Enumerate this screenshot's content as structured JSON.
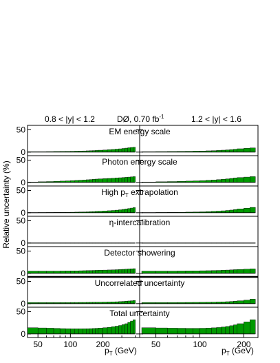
{
  "chart_data": {
    "type": "area",
    "header": {
      "left_range": "0.8 < |y| < 1.2",
      "center": "DØ, 0.70 fb",
      "center_sup": "-1",
      "right_range": "1.2 < |y| < 1.6"
    },
    "ylabel": "Relative uncertainty (%)",
    "xlabel_main": "p",
    "xlabel_sub": "T",
    "xlabel_unit": " (GeV)",
    "xscale": "log",
    "y_ticks": [
      "0",
      "50"
    ],
    "ylim": [
      -8,
      60
    ],
    "fill_color": "#009900",
    "left_panel": {
      "xlim": [
        40,
        420
      ],
      "x_ticks": [
        50,
        100,
        200
      ],
      "x_tick_labels": [
        "50",
        "100",
        "200"
      ],
      "bin_edges": [
        40,
        50,
        60,
        70,
        80,
        90,
        100,
        110,
        120,
        130,
        140,
        150,
        160,
        170,
        180,
        200,
        220,
        240,
        260,
        280,
        300,
        320,
        340,
        360,
        380,
        400
      ]
    },
    "right_panel": {
      "xlim": [
        40,
        250
      ],
      "x_ticks": [
        50,
        100,
        200
      ],
      "x_tick_labels": [
        "50",
        "100",
        "200"
      ],
      "bin_edges": [
        40,
        50,
        60,
        70,
        80,
        90,
        100,
        110,
        120,
        130,
        140,
        150,
        160,
        170,
        180,
        200,
        220,
        240
      ]
    },
    "panels": [
      {
        "label": "EM energy scale",
        "left": [
          1,
          1,
          1.2,
          1.4,
          1.5,
          1.7,
          1.9,
          2.1,
          2.3,
          2.6,
          2.9,
          3.2,
          3.5,
          3.8,
          4.3,
          4.8,
          5.4,
          6.0,
          6.7,
          7.4,
          8.2,
          9.0,
          9.8,
          10.5,
          11
        ],
        "right": [
          1,
          1.2,
          1.4,
          1.6,
          1.9,
          2.2,
          2.5,
          2.9,
          3.3,
          3.8,
          4.4,
          5.0,
          5.7,
          6.5,
          7.5,
          8.5,
          9.5
        ]
      },
      {
        "label": "Photon energy scale",
        "left": [
          1,
          1.5,
          2,
          2.5,
          3,
          3.5,
          4,
          4.5,
          5,
          5.5,
          6,
          6.5,
          7,
          7.5,
          8,
          8.5,
          9,
          9.5,
          10,
          10.5,
          11,
          11.5,
          12,
          12.5,
          13
        ],
        "right": [
          1,
          1.5,
          2,
          2.5,
          3,
          3.5,
          4,
          4.8,
          5.5,
          6.3,
          7.2,
          8.0,
          9.0,
          10.0,
          11.0,
          12.0,
          13.0
        ]
      },
      {
        "label_pre": "High p",
        "label_sub": "T",
        "label_post": " extrapolation",
        "left": [
          0.5,
          0.6,
          0.7,
          0.8,
          0.9,
          1.0,
          1.2,
          1.4,
          1.6,
          1.8,
          2.0,
          2.3,
          2.6,
          3.0,
          3.4,
          3.9,
          4.5,
          5.1,
          5.8,
          6.6,
          7.5,
          8.5,
          9.5,
          10.5,
          11.5
        ],
        "right": [
          0.5,
          0.7,
          0.9,
          1.1,
          1.4,
          1.7,
          2.0,
          2.5,
          3.0,
          3.6,
          4.3,
          5.1,
          6.0,
          7.2,
          8.6,
          10.2,
          12.0
        ]
      },
      {
        "label": "η-intercalibration",
        "left": [
          0.3,
          0.3,
          0.3,
          0.3,
          0.3,
          0.3,
          0.3,
          0.3,
          0.3,
          0.3,
          0.3,
          0.3,
          0.3,
          0.3,
          0.3,
          0.3,
          0.3,
          0.3,
          0.3,
          0.3,
          0.3,
          0.3,
          0.3,
          0.3,
          0.3
        ],
        "right": [
          0.3,
          0.3,
          0.3,
          0.3,
          0.3,
          0.3,
          0.3,
          0.3,
          0.3,
          0.3,
          0.3,
          0.3,
          0.3,
          0.3,
          0.3,
          0.3,
          0.3
        ]
      },
      {
        "label": "Detector showering",
        "left": [
          5,
          5,
          5,
          5,
          5.2,
          5.3,
          5.5,
          5.6,
          5.8,
          6.0,
          6.2,
          6.4,
          6.6,
          6.8,
          7.0,
          7.3,
          7.6,
          7.9,
          8.2,
          8.6,
          9.0,
          9.4,
          9.8,
          10.2,
          10.5
        ],
        "right": [
          5,
          5,
          5,
          5.2,
          5.4,
          5.6,
          5.8,
          6.0,
          6.3,
          6.6,
          7.0,
          7.4,
          7.8,
          8.3,
          8.8,
          9.4,
          10.0
        ]
      },
      {
        "label": "Uncorrelated uncertainty",
        "left": [
          2.5,
          2.5,
          2.5,
          2.5,
          2.6,
          2.6,
          2.7,
          2.7,
          2.8,
          2.8,
          2.9,
          3.0,
          3.1,
          3.2,
          3.3,
          3.5,
          3.7,
          3.9,
          4.2,
          4.6,
          5.0,
          5.5,
          6.0,
          6.5,
          7.0
        ],
        "right": [
          2.5,
          2.5,
          2.6,
          2.7,
          2.8,
          2.9,
          3.0,
          3.2,
          3.4,
          3.7,
          4.0,
          4.4,
          4.9,
          5.6,
          6.5,
          8.0,
          10.0
        ]
      },
      {
        "label": "Total uncertainty",
        "left": [
          14,
          13.5,
          13,
          12.5,
          12,
          11.8,
          11.5,
          11.5,
          11.5,
          11.6,
          11.8,
          12.0,
          12.3,
          12.7,
          13.2,
          14.0,
          15.0,
          16.2,
          17.5,
          19.0,
          21.0,
          23.0,
          26.0,
          29.0,
          32.0
        ],
        "right": [
          14,
          13.5,
          13,
          12.8,
          12.6,
          12.6,
          12.8,
          13.2,
          13.8,
          14.5,
          15.5,
          16.8,
          18.5,
          20.5,
          23.0,
          27.0,
          32.0
        ]
      }
    ]
  }
}
